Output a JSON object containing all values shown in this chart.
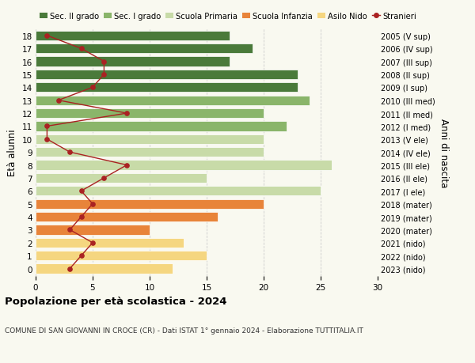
{
  "ages": [
    0,
    1,
    2,
    3,
    4,
    5,
    6,
    7,
    8,
    9,
    10,
    11,
    12,
    13,
    14,
    15,
    16,
    17,
    18
  ],
  "right_labels": [
    "2023 (nido)",
    "2022 (nido)",
    "2021 (nido)",
    "2020 (mater)",
    "2019 (mater)",
    "2018 (mater)",
    "2017 (I ele)",
    "2016 (II ele)",
    "2015 (III ele)",
    "2014 (IV ele)",
    "2013 (V ele)",
    "2012 (I med)",
    "2011 (II med)",
    "2010 (III med)",
    "2009 (I sup)",
    "2008 (II sup)",
    "2007 (III sup)",
    "2006 (IV sup)",
    "2005 (V sup)"
  ],
  "bar_values": [
    12,
    15,
    13,
    10,
    16,
    20,
    25,
    15,
    26,
    20,
    20,
    22,
    20,
    24,
    23,
    23,
    17,
    19,
    17
  ],
  "stranieri_values": [
    3,
    4,
    5,
    3,
    4,
    5,
    4,
    6,
    8,
    3,
    1,
    1,
    8,
    2,
    5,
    6,
    6,
    4,
    1
  ],
  "bar_colors": [
    "#f5d680",
    "#f5d680",
    "#f5d680",
    "#e8843a",
    "#e8843a",
    "#e8843a",
    "#c8dba8",
    "#c8dba8",
    "#c8dba8",
    "#c8dba8",
    "#c8dba8",
    "#8ab56a",
    "#8ab56a",
    "#8ab56a",
    "#4a7a3a",
    "#4a7a3a",
    "#4a7a3a",
    "#4a7a3a",
    "#4a7a3a"
  ],
  "legend_labels": [
    "Sec. II grado",
    "Sec. I grado",
    "Scuola Primaria",
    "Scuola Infanzia",
    "Asilo Nido",
    "Stranieri"
  ],
  "legend_colors": [
    "#4a7a3a",
    "#8ab56a",
    "#c8dba8",
    "#e8843a",
    "#f5d680",
    "#aa2222"
  ],
  "title": "Popolazione per età scolastica - 2024",
  "subtitle": "COMUNE DI SAN GIOVANNI IN CROCE (CR) - Dati ISTAT 1° gennaio 2024 - Elaborazione TUTTITALIA.IT",
  "ylabel_left": "Età alunni",
  "ylabel_right": "Anni di nascita",
  "xlim": [
    0,
    30
  ],
  "xticks": [
    0,
    5,
    10,
    15,
    20,
    25,
    30
  ],
  "stranieri_color": "#aa2222",
  "bar_height": 0.75,
  "grid_color": "#cccccc",
  "bg_color": "#f9f9f0"
}
